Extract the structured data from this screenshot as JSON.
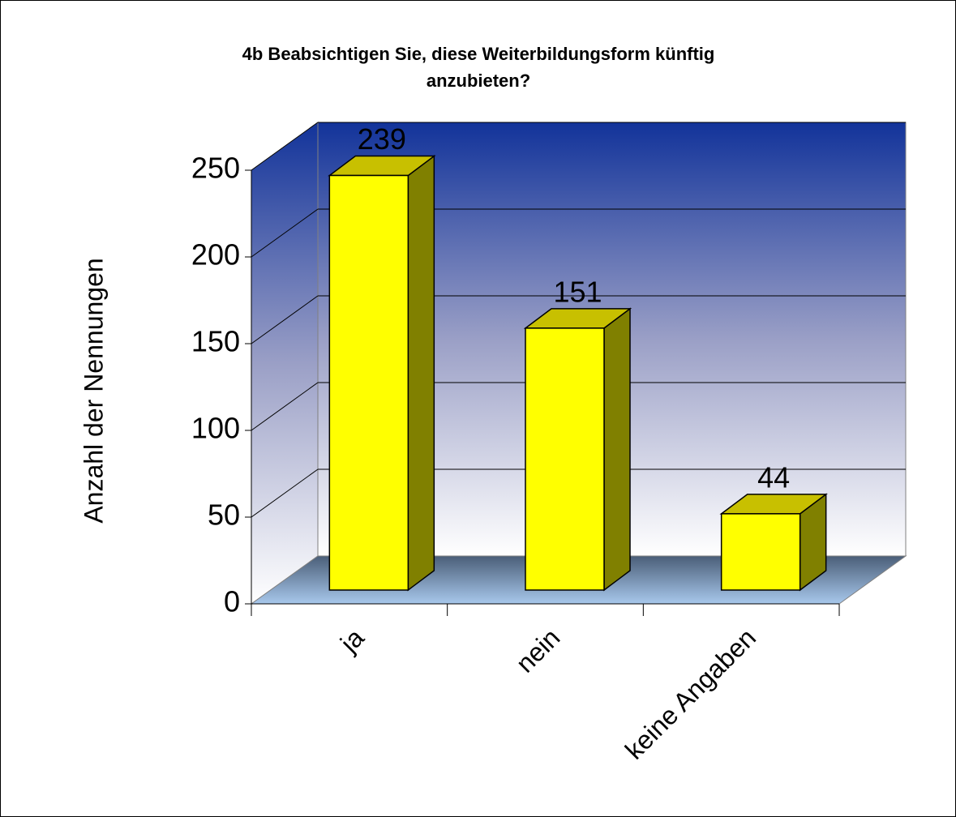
{
  "chart_data": {
    "type": "bar3d",
    "title": [
      "4b Beabsichtigen Sie, diese Weiterbildungsform künftig",
      "anzubieten?"
    ],
    "y_label": "Anzahl der Nennungen",
    "categories": [
      "ja",
      "nein",
      "keine Angaben"
    ],
    "values": [
      239,
      151,
      44
    ],
    "color": "#ffff00",
    "ylim": [
      0,
      250
    ],
    "yticks": [
      0,
      50,
      100,
      150,
      200,
      250
    ],
    "grid": true
  }
}
